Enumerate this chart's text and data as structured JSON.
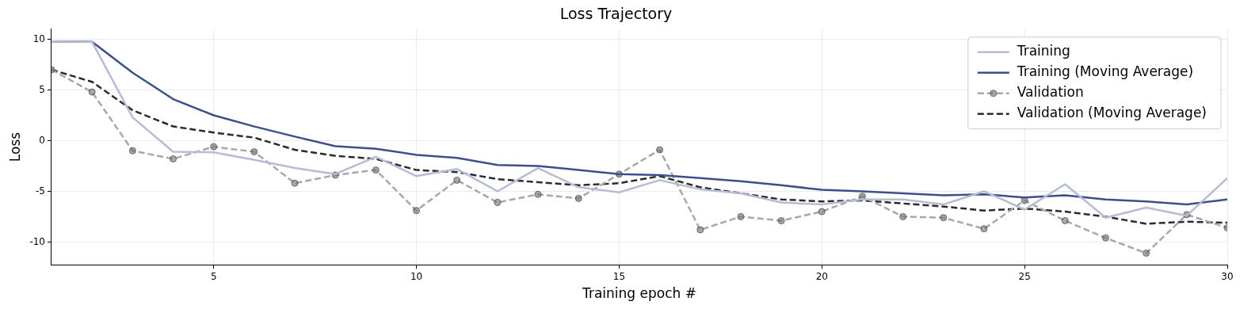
{
  "chart_data": {
    "type": "line",
    "title": "Loss Trajectory",
    "xlabel": "Training epoch #",
    "ylabel": "Loss",
    "x": [
      1,
      2,
      3,
      4,
      5,
      6,
      7,
      8,
      9,
      10,
      11,
      12,
      13,
      14,
      15,
      16,
      17,
      18,
      19,
      20,
      21,
      22,
      23,
      24,
      25,
      26,
      27,
      28,
      29,
      30
    ],
    "series": [
      {
        "name": "Training",
        "color": "#b4bcd6",
        "line_style": "solid",
        "marker": "none",
        "values": [
          9.8,
          9.75,
          2.3,
          -1.1,
          -1.15,
          -1.9,
          -2.7,
          -3.3,
          -1.6,
          -3.5,
          -2.8,
          -5.0,
          -2.7,
          -4.6,
          -5.1,
          -3.9,
          -4.8,
          -5.2,
          -6.1,
          -6.3,
          -5.8,
          -5.8,
          -6.3,
          -5.0,
          -6.8,
          -4.3,
          -7.6,
          -6.6,
          -7.4,
          -3.7
        ]
      },
      {
        "name": "Training (Moving Average)",
        "color": "#3c4f8b",
        "line_style": "solid",
        "marker": "none",
        "values": [
          9.8,
          9.75,
          6.7,
          4.1,
          2.5,
          1.4,
          0.4,
          -0.55,
          -0.8,
          -1.4,
          -1.7,
          -2.4,
          -2.5,
          -2.9,
          -3.3,
          -3.4,
          -3.7,
          -4.0,
          -4.4,
          -4.85,
          -5.0,
          -5.2,
          -5.4,
          -5.3,
          -5.6,
          -5.4,
          -5.8,
          -6.0,
          -6.3,
          -5.8
        ]
      },
      {
        "name": "Validation",
        "color": "#a8a8a8",
        "line_style": "dashed",
        "marker": "circle",
        "values": [
          7.0,
          4.8,
          -1.0,
          -1.8,
          -0.6,
          -1.1,
          -4.2,
          -3.4,
          -2.9,
          -6.9,
          -3.9,
          -6.1,
          -5.3,
          -5.7,
          -3.3,
          -0.9,
          -8.8,
          -7.5,
          -7.9,
          -7.0,
          -5.5,
          -7.5,
          -7.6,
          -8.7,
          -5.9,
          -7.9,
          -9.6,
          -11.1,
          -7.3,
          -8.6
        ]
      },
      {
        "name": "Validation (Moving Average)",
        "color": "#2b2b2b",
        "line_style": "dashed",
        "marker": "none",
        "values": [
          7.0,
          5.8,
          3.0,
          1.4,
          0.8,
          0.3,
          -0.9,
          -1.5,
          -1.8,
          -2.9,
          -3.1,
          -3.8,
          -4.1,
          -4.4,
          -4.2,
          -3.5,
          -4.6,
          -5.2,
          -5.8,
          -6.0,
          -5.9,
          -6.2,
          -6.5,
          -6.9,
          -6.7,
          -7.0,
          -7.5,
          -8.2,
          -8.0,
          -8.1
        ]
      }
    ],
    "xlim": [
      1,
      30
    ],
    "xticks": [
      5,
      10,
      15,
      20,
      25,
      30
    ],
    "ylim": [
      -12.25,
      11
    ],
    "yticks": [
      -10,
      -5,
      0,
      5,
      10
    ],
    "grid": true,
    "legend": "top right"
  }
}
